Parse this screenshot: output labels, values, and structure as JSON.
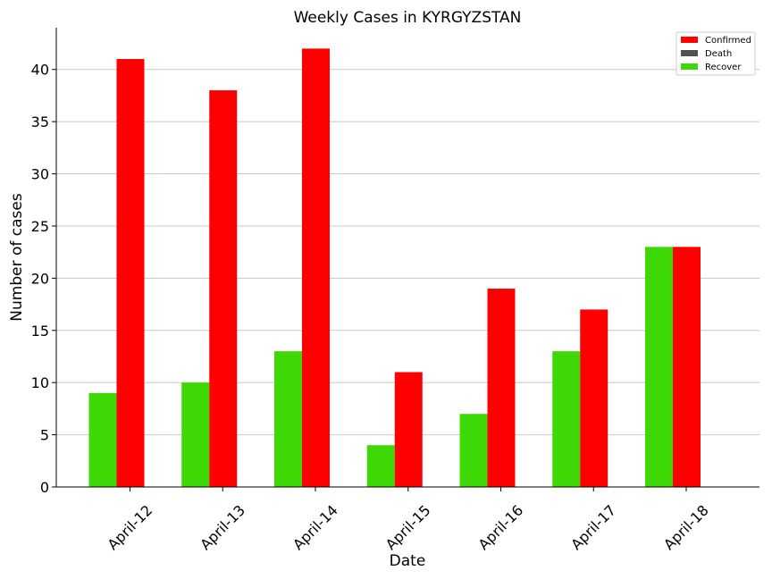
{
  "chart_data": {
    "type": "bar",
    "title": "Weekly Cases in KYRGYZSTAN",
    "xlabel": "Date",
    "ylabel": "Number of cases",
    "categories": [
      "April-12",
      "April-13",
      "April-14",
      "April-15",
      "April-16",
      "April-17",
      "April-18"
    ],
    "series": [
      {
        "name": "Recover",
        "color": "#3dd805",
        "values": [
          9,
          10,
          13,
          4,
          7,
          13,
          23
        ]
      },
      {
        "name": "Confirmed",
        "color": "#ff0000",
        "values": [
          41,
          38,
          42,
          11,
          19,
          17,
          23
        ]
      },
      {
        "name": "Death",
        "color": "#505050",
        "values": [
          0,
          0,
          0,
          0,
          0,
          0,
          0
        ]
      }
    ],
    "legend": {
      "position": "top-right",
      "order": [
        "Confirmed",
        "Death",
        "Recover"
      ]
    },
    "ylim": [
      0,
      44
    ],
    "yticks": [
      0,
      5,
      10,
      15,
      20,
      25,
      30,
      35,
      40
    ],
    "grid": "horizontal",
    "x_tick_rotation_deg": 45
  }
}
